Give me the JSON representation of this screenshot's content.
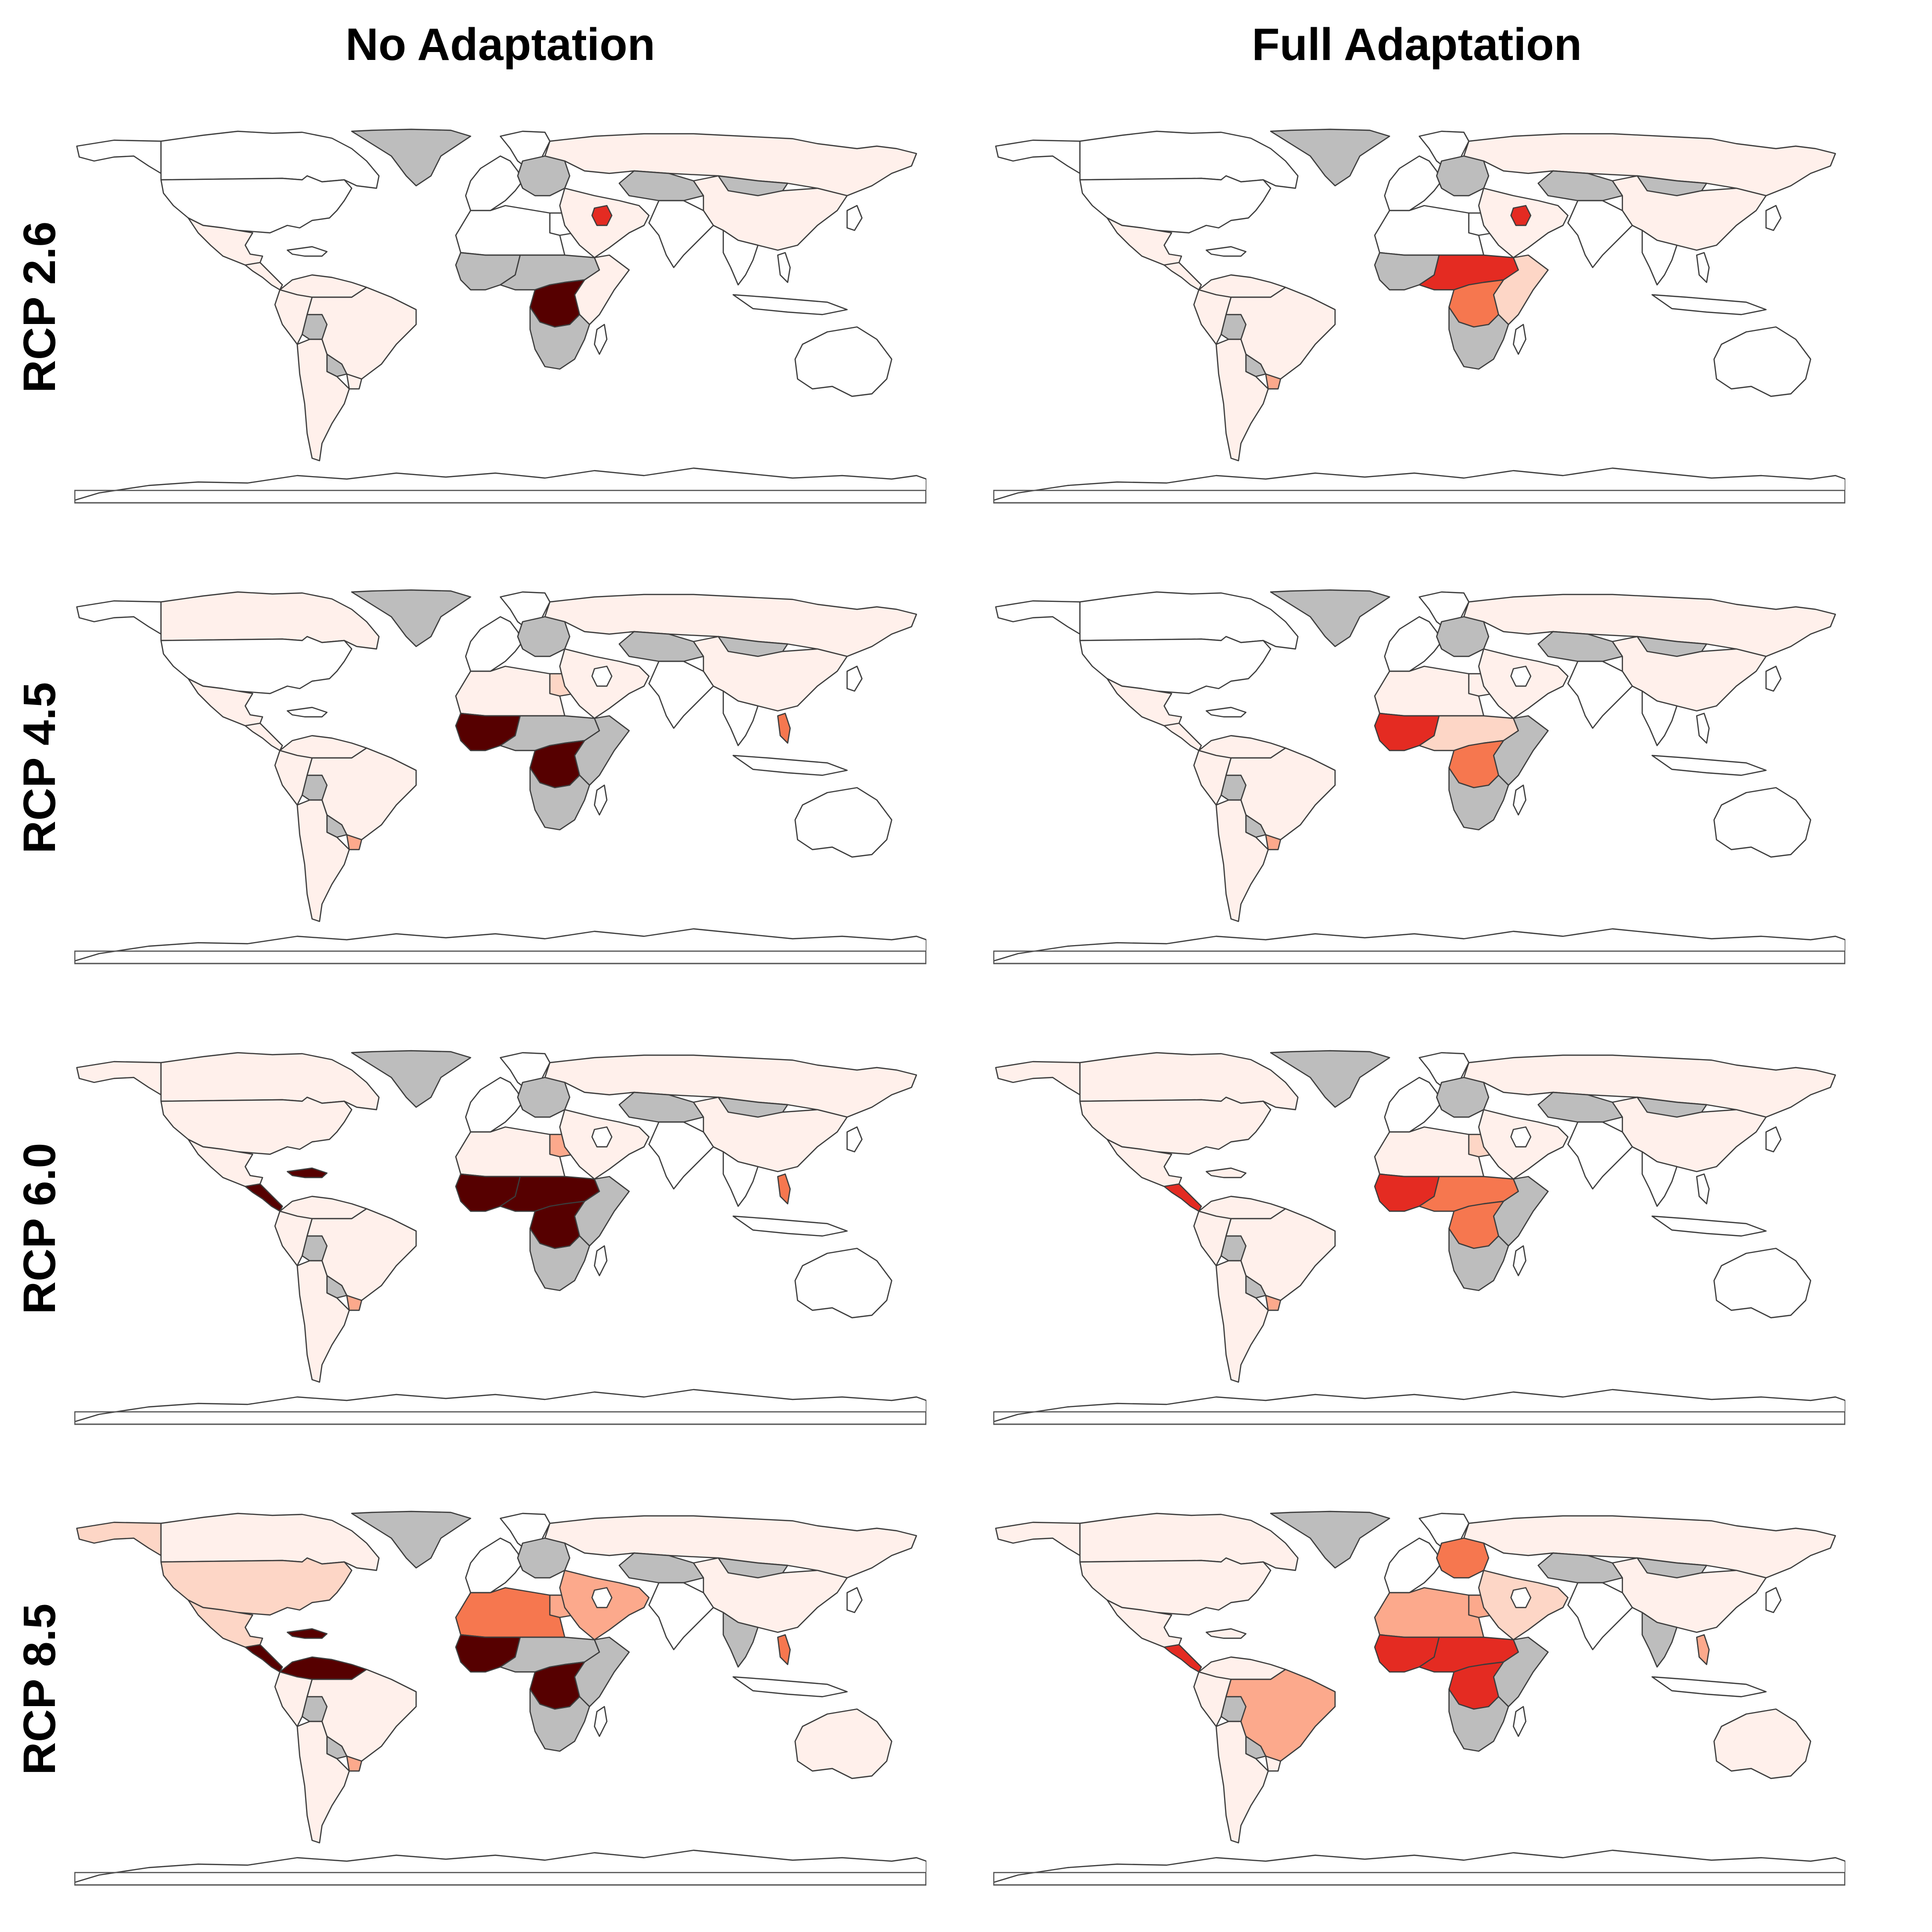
{
  "columns": [
    "No Adaptation",
    "Full Adaptation"
  ],
  "rows": [
    "RCP 2.6",
    "RCP 4.5",
    "RCP 6.0",
    "RCP 8.5"
  ],
  "colors": {
    "no_data": "#bdbdbd",
    "level_0": "#ffffff",
    "level_1": "#fff0eb",
    "level_2": "#fdd6c6",
    "level_3": "#fca98c",
    "level_4": "#f6774f",
    "level_5": "#e42b22",
    "level_6": "#560000",
    "border": "#3c3c3c"
  },
  "panels": [
    {
      "id": "noadapt-rcp26",
      "regions": {
        "canada": 0,
        "alaska": 0,
        "usa": 0,
        "mexico": 1,
        "central_am": 1,
        "caribbean": 0,
        "n_south_am": 1,
        "brazil": 1,
        "andes": 1,
        "bolivia": 7,
        "paraguay": 7,
        "uruguay": 1,
        "southern_cone": 1,
        "greenland": 7,
        "scandinavia": 0,
        "western_eu": 0,
        "eastern_eu": 7,
        "russia": 1,
        "central_asia": 7,
        "mongolia": 7,
        "china": 1,
        "middle_east": 1,
        "iraq": 5,
        "egypt": 0,
        "north_africa": 0,
        "west_africa": 7,
        "central_africa": 7,
        "drc": 6,
        "east_africa": 1,
        "southern_africa": 7,
        "madagascar": 0,
        "south_asia": 0,
        "se_asia": 0,
        "philippines": 0,
        "indonesia": 0,
        "japan": 0,
        "australia": 0
      }
    },
    {
      "id": "fulladapt-rcp26",
      "regions": {
        "canada": 0,
        "alaska": 0,
        "usa": 0,
        "mexico": 1,
        "central_am": 1,
        "caribbean": 0,
        "n_south_am": 1,
        "brazil": 1,
        "andes": 1,
        "bolivia": 7,
        "paraguay": 7,
        "uruguay": 3,
        "southern_cone": 1,
        "greenland": 7,
        "scandinavia": 0,
        "western_eu": 0,
        "eastern_eu": 7,
        "russia": 1,
        "central_asia": 7,
        "mongolia": 7,
        "china": 1,
        "middle_east": 1,
        "iraq": 5,
        "egypt": 0,
        "north_africa": 0,
        "west_africa": 7,
        "central_africa": 5,
        "drc": 4,
        "east_africa": 2,
        "southern_africa": 7,
        "madagascar": 0,
        "south_asia": 0,
        "se_asia": 0,
        "philippines": 0,
        "indonesia": 0,
        "japan": 0,
        "australia": 0
      }
    },
    {
      "id": "noadapt-rcp45",
      "regions": {
        "canada": 1,
        "alaska": 0,
        "usa": 0,
        "mexico": 1,
        "central_am": 1,
        "caribbean": 0,
        "n_south_am": 1,
        "brazil": 1,
        "andes": 1,
        "bolivia": 7,
        "paraguay": 7,
        "uruguay": 3,
        "southern_cone": 1,
        "greenland": 7,
        "scandinavia": 0,
        "western_eu": 0,
        "eastern_eu": 7,
        "russia": 1,
        "central_asia": 7,
        "mongolia": 7,
        "china": 1,
        "middle_east": 1,
        "iraq": 0,
        "egypt": 2,
        "north_africa": 1,
        "west_africa": 6,
        "central_africa": 7,
        "drc": 6,
        "east_africa": 7,
        "southern_africa": 7,
        "madagascar": 0,
        "south_asia": 0,
        "se_asia": 0,
        "philippines": 4,
        "indonesia": 0,
        "japan": 0,
        "australia": 0
      }
    },
    {
      "id": "fulladapt-rcp45",
      "regions": {
        "canada": 0,
        "alaska": 0,
        "usa": 0,
        "mexico": 1,
        "central_am": 1,
        "caribbean": 0,
        "n_south_am": 1,
        "brazil": 1,
        "andes": 1,
        "bolivia": 7,
        "paraguay": 7,
        "uruguay": 3,
        "southern_cone": 1,
        "greenland": 7,
        "scandinavia": 0,
        "western_eu": 0,
        "eastern_eu": 7,
        "russia": 1,
        "central_asia": 7,
        "mongolia": 7,
        "china": 1,
        "middle_east": 1,
        "iraq": 0,
        "egypt": 1,
        "north_africa": 1,
        "west_africa": 5,
        "central_africa": 2,
        "drc": 4,
        "east_africa": 7,
        "southern_africa": 7,
        "madagascar": 0,
        "south_asia": 0,
        "se_asia": 0,
        "philippines": 0,
        "indonesia": 0,
        "japan": 0,
        "australia": 0
      }
    },
    {
      "id": "noadapt-rcp60",
      "regions": {
        "canada": 1,
        "alaska": 1,
        "usa": 1,
        "mexico": 1,
        "central_am": 6,
        "caribbean": 6,
        "n_south_am": 1,
        "brazil": 1,
        "andes": 1,
        "bolivia": 7,
        "paraguay": 7,
        "uruguay": 3,
        "southern_cone": 1,
        "greenland": 7,
        "scandinavia": 0,
        "western_eu": 0,
        "eastern_eu": 7,
        "russia": 1,
        "central_asia": 7,
        "mongolia": 7,
        "china": 1,
        "middle_east": 1,
        "iraq": 0,
        "egypt": 3,
        "north_africa": 1,
        "west_africa": 6,
        "central_africa": 6,
        "drc": 6,
        "east_africa": 7,
        "southern_africa": 7,
        "madagascar": 0,
        "south_asia": 0,
        "se_asia": 0,
        "philippines": 4,
        "indonesia": 0,
        "japan": 0,
        "australia": 0
      }
    },
    {
      "id": "fulladapt-rcp60",
      "regions": {
        "canada": 1,
        "alaska": 1,
        "usa": 1,
        "mexico": 1,
        "central_am": 5,
        "caribbean": 1,
        "n_south_am": 1,
        "brazil": 1,
        "andes": 1,
        "bolivia": 7,
        "paraguay": 7,
        "uruguay": 3,
        "southern_cone": 1,
        "greenland": 7,
        "scandinavia": 0,
        "western_eu": 0,
        "eastern_eu": 7,
        "russia": 1,
        "central_asia": 7,
        "mongolia": 7,
        "china": 1,
        "middle_east": 1,
        "iraq": 0,
        "egypt": 2,
        "north_africa": 1,
        "west_africa": 5,
        "central_africa": 4,
        "drc": 4,
        "east_africa": 7,
        "southern_africa": 7,
        "madagascar": 0,
        "south_asia": 0,
        "se_asia": 0,
        "philippines": 0,
        "indonesia": 0,
        "japan": 0,
        "australia": 0
      }
    },
    {
      "id": "noadapt-rcp85",
      "regions": {
        "canada": 1,
        "alaska": 2,
        "usa": 2,
        "mexico": 2,
        "central_am": 6,
        "caribbean": 6,
        "n_south_am": 6,
        "brazil": 1,
        "andes": 1,
        "bolivia": 7,
        "paraguay": 7,
        "uruguay": 3,
        "southern_cone": 1,
        "greenland": 7,
        "scandinavia": 0,
        "western_eu": 0,
        "eastern_eu": 7,
        "russia": 1,
        "central_asia": 7,
        "mongolia": 7,
        "china": 1,
        "middle_east": 3,
        "iraq": 0,
        "egypt": 3,
        "north_africa": 4,
        "west_africa": 6,
        "central_africa": 7,
        "drc": 6,
        "east_africa": 7,
        "southern_africa": 7,
        "madagascar": 0,
        "south_asia": 0,
        "se_asia": 7,
        "philippines": 4,
        "indonesia": 0,
        "japan": 0,
        "australia": 1
      }
    },
    {
      "id": "fulladapt-rcp85",
      "regions": {
        "canada": 1,
        "alaska": 1,
        "usa": 1,
        "mexico": 1,
        "central_am": 5,
        "caribbean": 1,
        "n_south_am": 1,
        "brazil": 3,
        "andes": 1,
        "bolivia": 7,
        "paraguay": 7,
        "uruguay": 1,
        "southern_cone": 1,
        "greenland": 7,
        "scandinavia": 0,
        "western_eu": 0,
        "eastern_eu": 4,
        "russia": 1,
        "central_asia": 7,
        "mongolia": 7,
        "china": 1,
        "middle_east": 2,
        "iraq": 0,
        "egypt": 3,
        "north_africa": 3,
        "west_africa": 5,
        "central_africa": 5,
        "drc": 5,
        "east_africa": 7,
        "southern_africa": 7,
        "madagascar": 0,
        "south_asia": 0,
        "se_asia": 7,
        "philippines": 3,
        "indonesia": 0,
        "japan": 0,
        "australia": 1
      }
    }
  ]
}
